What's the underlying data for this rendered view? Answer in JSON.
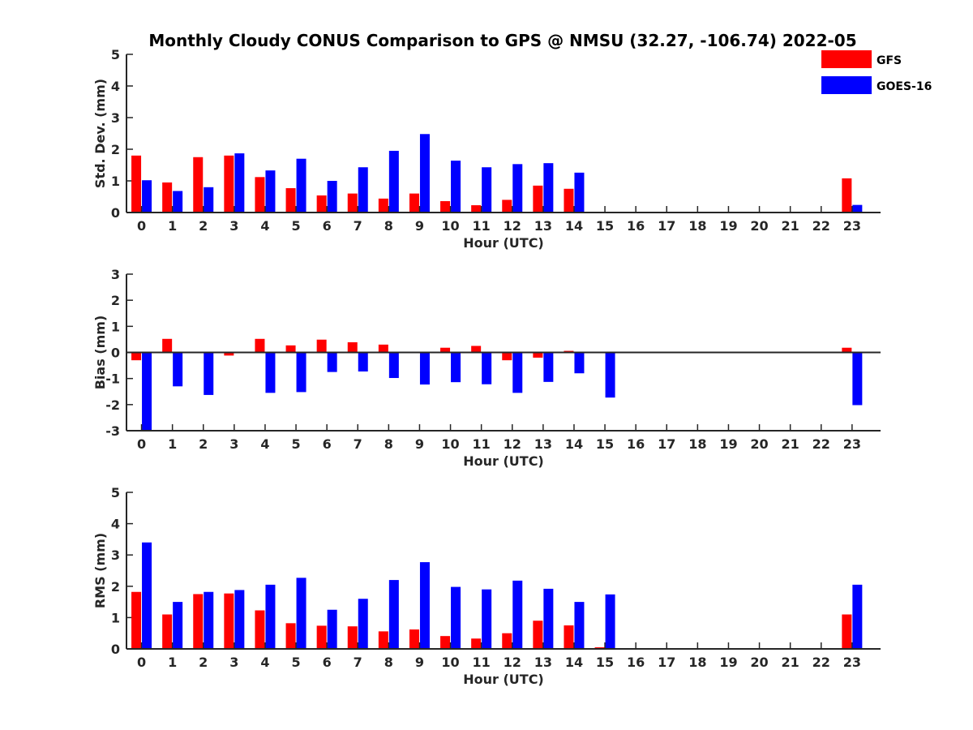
{
  "colors": {
    "GFS": "#ff0000",
    "GOES-16": "#0000ff",
    "axis": "#262626"
  },
  "title": "Monthly Cloudy CONUS Comparison to GPS @ NMSU (32.27, -106.74) 2022-05",
  "legend": {
    "placement": "top-right",
    "items": [
      "GFS",
      "GOES-16"
    ]
  },
  "chart_data": [
    {
      "type": "bar",
      "title": "Monthly Cloudy CONUS Comparison to GPS @ NMSU (32.27, -106.74) 2022-05",
      "xlabel": "Hour (UTC)",
      "ylabel": "Std. Dev. (mm)",
      "ylim": [
        0,
        5
      ],
      "yticks": [
        0,
        1,
        2,
        3,
        4,
        5
      ],
      "categories": [
        "0",
        "1",
        "2",
        "3",
        "4",
        "5",
        "6",
        "7",
        "8",
        "9",
        "10",
        "11",
        "12",
        "13",
        "14",
        "15",
        "16",
        "17",
        "18",
        "19",
        "20",
        "21",
        "22",
        "23"
      ],
      "series": [
        {
          "name": "GFS",
          "values": [
            1.8,
            0.95,
            1.75,
            1.8,
            1.12,
            0.77,
            0.54,
            0.6,
            0.44,
            0.6,
            0.36,
            0.23,
            0.4,
            0.85,
            0.75,
            0,
            0,
            0,
            0,
            0,
            0,
            0,
            0,
            1.08
          ]
        },
        {
          "name": "GOES-16",
          "values": [
            1.02,
            0.68,
            0.8,
            1.87,
            1.33,
            1.7,
            1.0,
            1.43,
            1.95,
            2.48,
            1.64,
            1.43,
            1.53,
            1.56,
            1.26,
            0,
            0,
            0,
            0,
            0,
            0,
            0,
            0,
            0.24
          ]
        }
      ]
    },
    {
      "type": "bar",
      "xlabel": "Hour (UTC)",
      "ylabel": "Bias (mm)",
      "ylim": [
        -3,
        3
      ],
      "yticks": [
        -3,
        -2,
        -1,
        0,
        1,
        2,
        3
      ],
      "categories": [
        "0",
        "1",
        "2",
        "3",
        "4",
        "5",
        "6",
        "7",
        "8",
        "9",
        "10",
        "11",
        "12",
        "13",
        "14",
        "15",
        "16",
        "17",
        "18",
        "19",
        "20",
        "21",
        "22",
        "23"
      ],
      "series": [
        {
          "name": "GFS",
          "values": [
            -0.3,
            0.52,
            0.03,
            -0.12,
            0.52,
            0.27,
            0.49,
            0.39,
            0.3,
            0,
            0.18,
            0.25,
            -0.3,
            -0.2,
            0.06,
            0.03,
            0,
            0,
            0,
            0,
            0,
            0,
            0,
            0.18
          ]
        },
        {
          "name": "GOES-16",
          "values": [
            -3.0,
            -1.3,
            -1.63,
            0,
            -1.55,
            -1.52,
            -0.75,
            -0.73,
            -0.98,
            -1.23,
            -1.14,
            -1.22,
            -1.55,
            -1.13,
            -0.8,
            -1.73,
            0,
            0,
            0,
            0,
            0,
            0,
            0,
            -2.02
          ]
        }
      ]
    },
    {
      "type": "bar",
      "xlabel": "Hour (UTC)",
      "ylabel": "RMS (mm)",
      "ylim": [
        0,
        5
      ],
      "yticks": [
        0,
        1,
        2,
        3,
        4,
        5
      ],
      "categories": [
        "0",
        "1",
        "2",
        "3",
        "4",
        "5",
        "6",
        "7",
        "8",
        "9",
        "10",
        "11",
        "12",
        "13",
        "14",
        "15",
        "16",
        "17",
        "18",
        "19",
        "20",
        "21",
        "22",
        "23"
      ],
      "series": [
        {
          "name": "GFS",
          "values": [
            1.82,
            1.1,
            1.75,
            1.77,
            1.23,
            0.82,
            0.74,
            0.72,
            0.56,
            0.62,
            0.41,
            0.33,
            0.5,
            0.9,
            0.75,
            0.05,
            0,
            0,
            0,
            0,
            0,
            0,
            0,
            1.1
          ]
        },
        {
          "name": "GOES-16",
          "values": [
            3.4,
            1.5,
            1.82,
            1.88,
            2.05,
            2.27,
            1.25,
            1.6,
            2.2,
            2.77,
            1.98,
            1.9,
            2.18,
            1.92,
            1.5,
            1.74,
            0,
            0,
            0,
            0,
            0,
            0,
            0,
            2.05
          ]
        }
      ]
    }
  ]
}
